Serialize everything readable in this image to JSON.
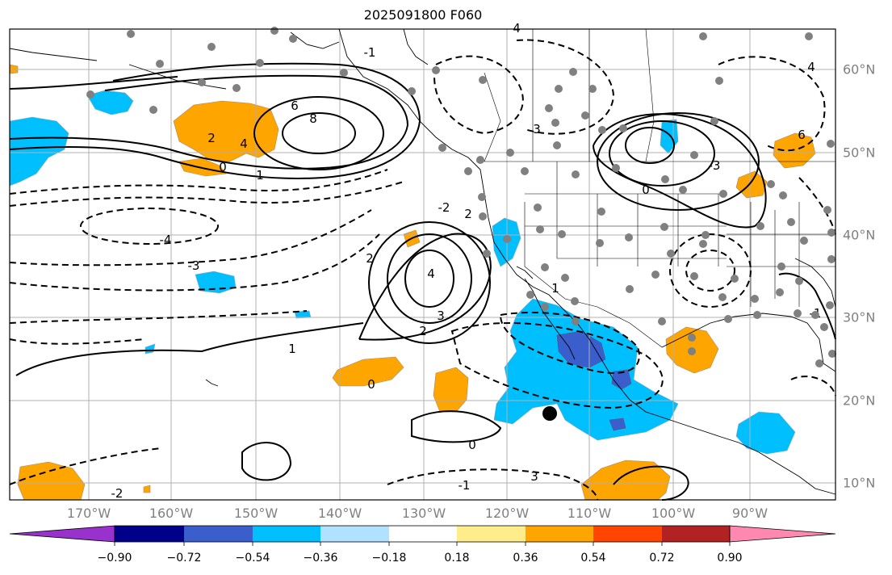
{
  "title": "2025091800 F060",
  "lon_labels": [
    "170°W",
    "160°W",
    "150°W",
    "140°W",
    "130°W",
    "120°W",
    "110°W",
    "100°W",
    "90°W"
  ],
  "lat_labels": [
    "60°N",
    "50°N",
    "40°N",
    "30°N",
    "20°N",
    "10°N"
  ],
  "colorbar": {
    "levels": [
      "−0.90",
      "−0.72",
      "−0.54",
      "−0.36",
      "−0.18",
      "0.18",
      "0.36",
      "0.54",
      "0.72",
      "0.90"
    ],
    "colors": [
      "#9932cc",
      "#00008b",
      "#3a5fcd",
      "#00bfff",
      "#b0e2ff",
      "#ffffff",
      "#ffec8b",
      "#ffa500",
      "#ff4500",
      "#b22222",
      "#ff88b0"
    ]
  },
  "contour_labels": [
    "8",
    "6",
    "4",
    "2",
    "1",
    "0",
    "-1",
    "-2",
    "-3",
    "-4",
    "4",
    "3",
    "2",
    "1",
    "0",
    "0",
    "-1",
    "-2",
    "-3",
    "4",
    "3",
    "2",
    "1",
    "0",
    "-1",
    "2",
    "3",
    "4",
    "6"
  ],
  "colors": {
    "grid": "#b0b0b0",
    "coast": "#000000",
    "station": "#808080",
    "contour": "#000000"
  }
}
